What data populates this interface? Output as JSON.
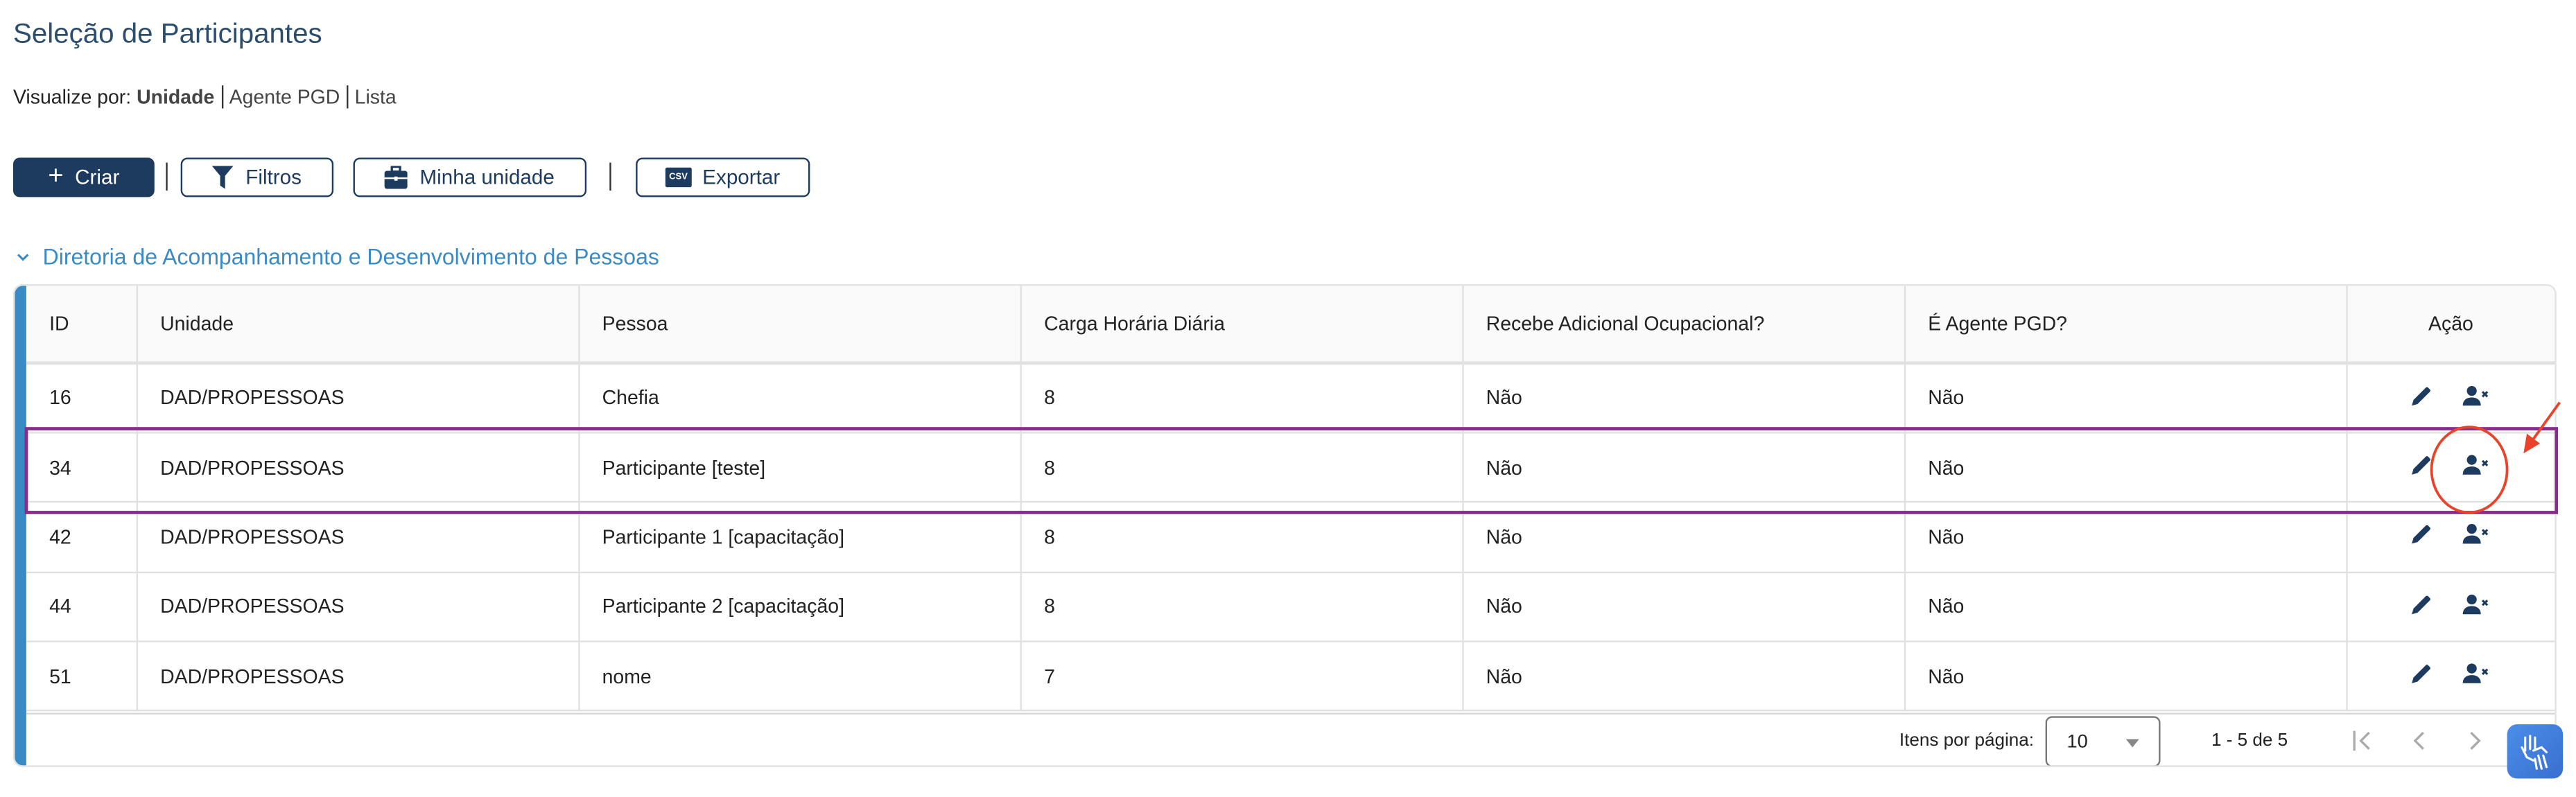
{
  "page": {
    "title": "Seleção de Participantes"
  },
  "view_by": {
    "label": "Visualize por:",
    "options": [
      "Unidade",
      "Agente PGD",
      "Lista"
    ],
    "selected": "Unidade"
  },
  "toolbar": {
    "create": "Criar",
    "filters": "Filtros",
    "my_unit": "Minha unidade",
    "export": "Exportar",
    "csv_badge": "CSV"
  },
  "section": {
    "title": "Diretoria de Acompanhamento e Desenvolvimento de Pessoas"
  },
  "table": {
    "columns": [
      "ID",
      "Unidade",
      "Pessoa",
      "Carga Horária Diária",
      "Recebe Adicional Ocupacional?",
      "É Agente PGD?",
      "Ação"
    ],
    "rows": [
      {
        "id": "16",
        "unidade": "DAD/PROPESSOAS",
        "pessoa": "Chefia",
        "carga": "8",
        "adicional": "Não",
        "agente": "Não"
      },
      {
        "id": "34",
        "unidade": "DAD/PROPESSOAS",
        "pessoa": "Participante [teste]",
        "carga": "8",
        "adicional": "Não",
        "agente": "Não"
      },
      {
        "id": "42",
        "unidade": "DAD/PROPESSOAS",
        "pessoa": "Participante 1 [capacitação]",
        "carga": "8",
        "adicional": "Não",
        "agente": "Não"
      },
      {
        "id": "44",
        "unidade": "DAD/PROPESSOAS",
        "pessoa": "Participante 2 [capacitação]",
        "carga": "8",
        "adicional": "Não",
        "agente": "Não"
      },
      {
        "id": "51",
        "unidade": "DAD/PROPESSOAS",
        "pessoa": "nome",
        "carga": "7",
        "adicional": "Não",
        "agente": "Não"
      }
    ]
  },
  "pagination": {
    "items_per_page_label": "Itens por página:",
    "items_per_page": "10",
    "range": "1 - 5 de 5"
  },
  "colors": {
    "primary": "#1d3a5f",
    "accent": "#3a8bc4",
    "highlight": "#862d8c",
    "annotation": "#e8432b"
  }
}
